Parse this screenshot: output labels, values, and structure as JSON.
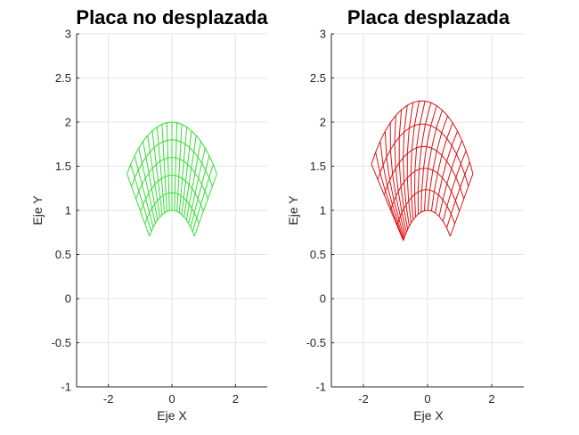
{
  "chart_data": [
    {
      "type": "mesh",
      "title": "Placa no desplazada",
      "xlabel": "Eje X",
      "ylabel": "Eje Y",
      "xlim": [
        -3,
        3
      ],
      "ylim": [
        -1,
        3
      ],
      "xticks": [
        -2,
        0,
        2
      ],
      "yticks": [
        -1,
        -0.5,
        0,
        0.5,
        1,
        1.5,
        2,
        2.5,
        3
      ],
      "grid": true,
      "color": "#33dd33",
      "mesh": {
        "radius_range": [
          1,
          2
        ],
        "angle_range_deg": [
          45,
          135
        ],
        "radial_divisions": 5,
        "angular_divisions": 20
      }
    },
    {
      "type": "mesh",
      "title": "Placa desplazada",
      "xlabel": "Eje X",
      "ylabel": "Eje Y",
      "xlim": [
        -3,
        3
      ],
      "ylim": [
        -1,
        3
      ],
      "xticks": [
        -2,
        0,
        2
      ],
      "yticks": [
        -1,
        -0.5,
        0,
        0.5,
        1,
        1.5,
        2,
        2.5,
        3
      ],
      "grid": true,
      "color": "#dd1111",
      "mesh": {
        "radial_divisions": 5,
        "angular_divisions": 20,
        "corners": {
          "outer_left": [
            -1.7,
            1.5
          ],
          "outer_top": [
            -0.58,
            2.24
          ],
          "outer_right": [
            1.38,
            1.43
          ],
          "inner_left": [
            -0.77,
            0.73
          ],
          "inner_right": [
            0.66,
            0.72
          ]
        }
      }
    }
  ]
}
